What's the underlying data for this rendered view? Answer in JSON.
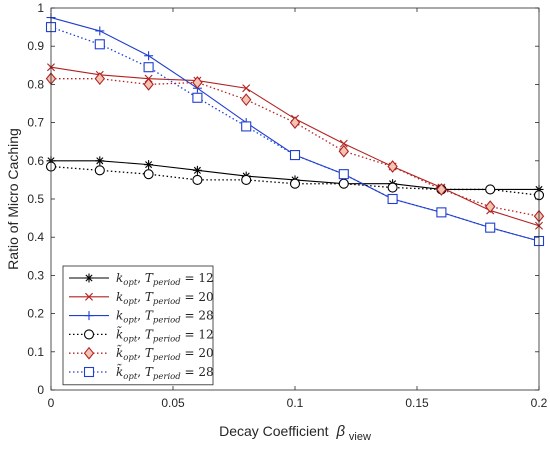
{
  "chart_data": {
    "type": "line",
    "xlabel": "Decay Coefficient",
    "xlabel_symbol": "β",
    "xlabel_subscript": "view",
    "ylabel": "Ratio of Micro Caching",
    "xlim": [
      0,
      0.2
    ],
    "ylim": [
      0,
      1
    ],
    "xticks": [
      0,
      0.05,
      0.1,
      0.15,
      0.2
    ],
    "xtick_labels": [
      "0",
      "0.05",
      "0.1",
      "0.15",
      "0.2"
    ],
    "yticks": [
      0,
      0.1,
      0.2,
      0.3,
      0.4,
      0.5,
      0.6,
      0.7,
      0.8,
      0.9,
      1
    ],
    "ytick_labels": [
      "0",
      "0.1",
      "0.2",
      "0.3",
      "0.4",
      "0.5",
      "0.6",
      "0.7",
      "0.8",
      "0.9",
      "1"
    ],
    "grid": false,
    "legend_position": "bottom-left",
    "x": [
      0,
      0.02,
      0.04,
      0.06,
      0.08,
      0.1,
      0.12,
      0.14,
      0.16,
      0.18,
      0.2
    ],
    "series": [
      {
        "name": "k_opt, T_period = 12",
        "name_parts": {
          "k": "k",
          "k_sub": "opt",
          "T": "T",
          "T_sub": "period",
          "rest": "= 12"
        },
        "tilde": false,
        "color": "#000000",
        "dash": "solid",
        "marker": "asterisk",
        "values": [
          0.6,
          0.6,
          0.59,
          0.575,
          0.56,
          0.55,
          0.54,
          0.54,
          0.525,
          0.525,
          0.525
        ]
      },
      {
        "name": "k_opt, T_period = 20",
        "name_parts": {
          "k": "k",
          "k_sub": "opt",
          "T": "T",
          "T_sub": "period",
          "rest": "= 20"
        },
        "tilde": false,
        "color": "#b22222",
        "dash": "solid",
        "marker": "x",
        "values": [
          0.845,
          0.825,
          0.815,
          0.81,
          0.79,
          0.71,
          0.645,
          0.585,
          0.53,
          0.47,
          0.43
        ]
      },
      {
        "name": "k_opt, T_period = 28",
        "name_parts": {
          "k": "k",
          "k_sub": "opt",
          "T": "T",
          "T_sub": "period",
          "rest": "= 28"
        },
        "tilde": false,
        "color": "#1f3fd1",
        "dash": "solid",
        "marker": "plus",
        "values": [
          0.975,
          0.94,
          0.875,
          0.79,
          0.7,
          0.615,
          0.565,
          0.5,
          0.465,
          0.425,
          0.39
        ]
      },
      {
        "name": "k̃_opt, T_period = 12",
        "name_parts": {
          "k": "k",
          "k_sub": "opt",
          "T": "T",
          "T_sub": "period",
          "rest": "= 12"
        },
        "tilde": true,
        "color": "#000000",
        "dash": "dotted",
        "marker": "circle",
        "values": [
          0.585,
          0.575,
          0.565,
          0.55,
          0.55,
          0.54,
          0.54,
          0.53,
          0.525,
          0.525,
          0.51
        ]
      },
      {
        "name": "k̃_opt, T_period = 20",
        "name_parts": {
          "k": "k",
          "k_sub": "opt",
          "T": "T",
          "T_sub": "period",
          "rest": "= 20"
        },
        "tilde": true,
        "color": "#b22222",
        "dash": "dotted",
        "marker": "diamond",
        "values": [
          0.815,
          0.815,
          0.8,
          0.805,
          0.76,
          0.7,
          0.625,
          0.585,
          0.525,
          0.48,
          0.455
        ]
      },
      {
        "name": "k̃_opt, T_period = 28",
        "name_parts": {
          "k": "k",
          "k_sub": "opt",
          "T": "T",
          "T_sub": "period",
          "rest": "= 28"
        },
        "tilde": true,
        "color": "#1f3fd1",
        "dash": "dotted",
        "marker": "square",
        "values": [
          0.95,
          0.905,
          0.845,
          0.765,
          0.69,
          0.615,
          0.565,
          0.5,
          0.465,
          0.425,
          0.39
        ]
      }
    ]
  }
}
